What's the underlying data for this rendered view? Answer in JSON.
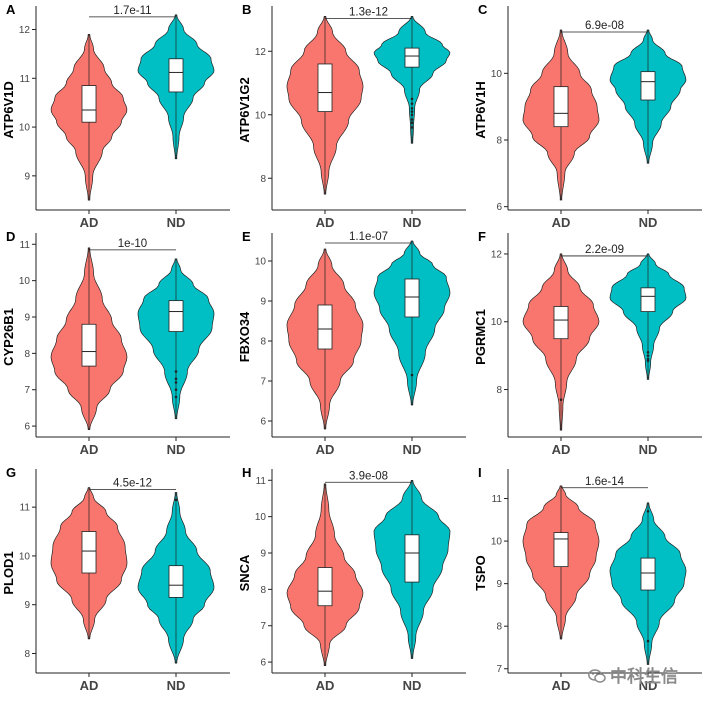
{
  "watermark": {
    "text": "中科生信",
    "icon": "wechat-icon"
  },
  "colors": {
    "AD": "#F8766D",
    "ND": "#00BFC4"
  },
  "chart_data": [
    {
      "type": "violin",
      "panel": "A",
      "ylabel": "ATP6V1D",
      "categories": [
        "AD",
        "ND"
      ],
      "ylim": [
        8.3,
        12.4
      ],
      "yticks": [
        9,
        10,
        11,
        12
      ],
      "pvalue": "1.7e-11",
      "series": [
        {
          "name": "AD",
          "min": 8.5,
          "q1": 10.1,
          "median": 10.35,
          "q3": 10.85,
          "max": 11.9,
          "density": [
            [
              8.5,
              0.02
            ],
            [
              9,
              0.1
            ],
            [
              9.5,
              0.35
            ],
            [
              9.8,
              0.6
            ],
            [
              10.1,
              0.85
            ],
            [
              10.35,
              1.0
            ],
            [
              10.6,
              0.9
            ],
            [
              10.9,
              0.6
            ],
            [
              11.2,
              0.4
            ],
            [
              11.6,
              0.12
            ],
            [
              11.9,
              0.02
            ]
          ],
          "outliers": []
        },
        {
          "name": "ND",
          "min": 9.35,
          "q1": 10.72,
          "median": 11.12,
          "q3": 11.4,
          "max": 12.3,
          "density": [
            [
              9.35,
              0.02
            ],
            [
              9.8,
              0.08
            ],
            [
              10.2,
              0.2
            ],
            [
              10.6,
              0.45
            ],
            [
              10.9,
              0.75
            ],
            [
              11.15,
              1.0
            ],
            [
              11.4,
              0.92
            ],
            [
              11.7,
              0.55
            ],
            [
              12.0,
              0.2
            ],
            [
              12.3,
              0.02
            ]
          ],
          "outliers": []
        }
      ]
    },
    {
      "type": "violin",
      "panel": "B",
      "ylabel": "ATP6V1G2",
      "categories": [
        "AD",
        "ND"
      ],
      "ylim": [
        7.0,
        13.3
      ],
      "yticks": [
        8,
        10,
        12
      ],
      "pvalue": "1.3e-12",
      "series": [
        {
          "name": "AD",
          "min": 7.5,
          "q1": 10.1,
          "median": 10.7,
          "q3": 11.6,
          "max": 13.1,
          "density": [
            [
              7.5,
              0.02
            ],
            [
              8.2,
              0.1
            ],
            [
              9.0,
              0.3
            ],
            [
              9.8,
              0.62
            ],
            [
              10.5,
              0.95
            ],
            [
              10.9,
              1.0
            ],
            [
              11.4,
              0.9
            ],
            [
              12.0,
              0.55
            ],
            [
              12.6,
              0.2
            ],
            [
              13.1,
              0.02
            ]
          ],
          "outliers": []
        },
        {
          "name": "ND",
          "min": 9.1,
          "q1": 11.5,
          "median": 11.85,
          "q3": 12.1,
          "max": 13.1,
          "density": [
            [
              9.1,
              0.02
            ],
            [
              9.6,
              0.04
            ],
            [
              10.2,
              0.07
            ],
            [
              10.8,
              0.2
            ],
            [
              11.3,
              0.55
            ],
            [
              11.7,
              0.9
            ],
            [
              11.95,
              1.0
            ],
            [
              12.2,
              0.8
            ],
            [
              12.6,
              0.35
            ],
            [
              13.1,
              0.02
            ]
          ],
          "outliers": [
            10.5,
            10.35,
            10.2,
            10.1,
            10.0,
            9.85,
            9.75,
            9.6
          ]
        }
      ]
    },
    {
      "type": "violin",
      "panel": "C",
      "ylabel": "ATP6V1H",
      "categories": [
        "AD",
        "ND"
      ],
      "ylim": [
        5.9,
        11.9
      ],
      "yticks": [
        6,
        8,
        10
      ],
      "pvalue": "6.9e-08",
      "series": [
        {
          "name": "AD",
          "min": 6.2,
          "q1": 8.4,
          "median": 8.8,
          "q3": 9.6,
          "max": 11.3,
          "density": [
            [
              6.2,
              0.02
            ],
            [
              7.0,
              0.1
            ],
            [
              7.6,
              0.35
            ],
            [
              8.1,
              0.75
            ],
            [
              8.6,
              1.0
            ],
            [
              9.0,
              0.95
            ],
            [
              9.5,
              0.8
            ],
            [
              10.0,
              0.5
            ],
            [
              10.6,
              0.18
            ],
            [
              11.3,
              0.02
            ]
          ],
          "outliers": []
        },
        {
          "name": "ND",
          "min": 7.3,
          "q1": 9.2,
          "median": 9.75,
          "q3": 10.05,
          "max": 11.3,
          "density": [
            [
              7.3,
              0.02
            ],
            [
              7.9,
              0.12
            ],
            [
              8.5,
              0.35
            ],
            [
              9.0,
              0.6
            ],
            [
              9.5,
              0.85
            ],
            [
              9.8,
              1.0
            ],
            [
              10.2,
              0.9
            ],
            [
              10.6,
              0.45
            ],
            [
              11.0,
              0.12
            ],
            [
              11.3,
              0.02
            ]
          ],
          "outliers": []
        }
      ]
    },
    {
      "type": "violin",
      "panel": "D",
      "ylabel": "CYP26B1",
      "categories": [
        "AD",
        "ND"
      ],
      "ylim": [
        5.7,
        11.2
      ],
      "yticks": [
        6,
        7,
        8,
        9,
        10,
        11
      ],
      "pvalue": "1e-10",
      "series": [
        {
          "name": "AD",
          "min": 5.9,
          "q1": 7.65,
          "median": 8.05,
          "q3": 8.8,
          "max": 10.9,
          "density": [
            [
              5.9,
              0.02
            ],
            [
              6.5,
              0.2
            ],
            [
              7.0,
              0.55
            ],
            [
              7.5,
              0.9
            ],
            [
              7.9,
              1.0
            ],
            [
              8.4,
              0.85
            ],
            [
              8.9,
              0.6
            ],
            [
              9.5,
              0.35
            ],
            [
              10.2,
              0.12
            ],
            [
              10.9,
              0.02
            ]
          ],
          "outliers": []
        },
        {
          "name": "ND",
          "min": 6.2,
          "q1": 8.6,
          "median": 9.15,
          "q3": 9.45,
          "max": 10.6,
          "density": [
            [
              6.2,
              0.02
            ],
            [
              6.8,
              0.1
            ],
            [
              7.5,
              0.3
            ],
            [
              8.1,
              0.6
            ],
            [
              8.7,
              0.95
            ],
            [
              9.1,
              1.0
            ],
            [
              9.5,
              0.85
            ],
            [
              9.9,
              0.45
            ],
            [
              10.3,
              0.12
            ],
            [
              10.6,
              0.02
            ]
          ],
          "outliers": [
            7.5,
            7.3,
            7.2,
            7.0,
            6.8
          ]
        }
      ]
    },
    {
      "type": "violin",
      "panel": "E",
      "ylabel": "FBXO34",
      "categories": [
        "AD",
        "ND"
      ],
      "ylim": [
        5.6,
        10.6
      ],
      "yticks": [
        6,
        7,
        8,
        9,
        10
      ],
      "pvalue": "1.1e-07",
      "series": [
        {
          "name": "AD",
          "min": 5.8,
          "q1": 7.8,
          "median": 8.3,
          "q3": 8.9,
          "max": 10.3,
          "density": [
            [
              5.8,
              0.02
            ],
            [
              6.4,
              0.12
            ],
            [
              7.0,
              0.4
            ],
            [
              7.5,
              0.75
            ],
            [
              8.0,
              0.95
            ],
            [
              8.4,
              1.0
            ],
            [
              8.9,
              0.8
            ],
            [
              9.4,
              0.5
            ],
            [
              9.9,
              0.18
            ],
            [
              10.3,
              0.02
            ]
          ],
          "outliers": []
        },
        {
          "name": "ND",
          "min": 6.4,
          "q1": 8.6,
          "median": 9.1,
          "q3": 9.55,
          "max": 10.5,
          "density": [
            [
              6.4,
              0.02
            ],
            [
              7.0,
              0.12
            ],
            [
              7.7,
              0.35
            ],
            [
              8.3,
              0.6
            ],
            [
              8.8,
              0.85
            ],
            [
              9.2,
              1.0
            ],
            [
              9.6,
              0.9
            ],
            [
              9.9,
              0.55
            ],
            [
              10.2,
              0.2
            ],
            [
              10.5,
              0.02
            ]
          ],
          "outliers": [
            7.15
          ]
        }
      ]
    },
    {
      "type": "violin",
      "panel": "F",
      "ylabel": "PGRMC1",
      "categories": [
        "AD",
        "ND"
      ],
      "ylim": [
        6.6,
        12.5
      ],
      "yticks": [
        8,
        10,
        12
      ],
      "pvalue": "2.2e-09",
      "series": [
        {
          "name": "AD",
          "min": 6.8,
          "q1": 9.5,
          "median": 10.05,
          "q3": 10.45,
          "max": 12.0,
          "density": [
            [
              6.8,
              0.02
            ],
            [
              7.5,
              0.05
            ],
            [
              8.2,
              0.15
            ],
            [
              8.9,
              0.4
            ],
            [
              9.5,
              0.75
            ],
            [
              10.0,
              1.0
            ],
            [
              10.5,
              0.85
            ],
            [
              11.0,
              0.5
            ],
            [
              11.5,
              0.18
            ],
            [
              12.0,
              0.02
            ]
          ],
          "outliers": [
            7.7
          ]
        },
        {
          "name": "ND",
          "min": 8.3,
          "q1": 10.3,
          "median": 10.75,
          "q3": 11.0,
          "max": 12.0,
          "density": [
            [
              8.3,
              0.02
            ],
            [
              8.8,
              0.07
            ],
            [
              9.3,
              0.15
            ],
            [
              9.8,
              0.3
            ],
            [
              10.3,
              0.65
            ],
            [
              10.7,
              1.0
            ],
            [
              11.0,
              0.95
            ],
            [
              11.4,
              0.55
            ],
            [
              11.7,
              0.2
            ],
            [
              12.0,
              0.02
            ]
          ],
          "outliers": [
            9.1,
            9.0,
            8.9,
            8.85
          ]
        }
      ]
    },
    {
      "type": "violin",
      "panel": "G",
      "ylabel": "PLOD1",
      "categories": [
        "AD",
        "ND"
      ],
      "ylim": [
        7.6,
        11.7
      ],
      "yticks": [
        8,
        9,
        10,
        11
      ],
      "pvalue": "4.5e-12",
      "series": [
        {
          "name": "AD",
          "min": 8.3,
          "q1": 9.65,
          "median": 10.1,
          "q3": 10.5,
          "max": 11.4,
          "density": [
            [
              8.3,
              0.02
            ],
            [
              8.7,
              0.15
            ],
            [
              9.1,
              0.45
            ],
            [
              9.5,
              0.85
            ],
            [
              9.85,
              1.0
            ],
            [
              10.2,
              0.95
            ],
            [
              10.6,
              0.75
            ],
            [
              10.9,
              0.45
            ],
            [
              11.2,
              0.12
            ],
            [
              11.4,
              0.02
            ]
          ],
          "outliers": []
        },
        {
          "name": "ND",
          "min": 7.8,
          "q1": 9.15,
          "median": 9.4,
          "q3": 9.8,
          "max": 11.3,
          "density": [
            [
              7.8,
              0.02
            ],
            [
              8.3,
              0.2
            ],
            [
              8.7,
              0.45
            ],
            [
              9.0,
              0.75
            ],
            [
              9.35,
              1.0
            ],
            [
              9.7,
              0.9
            ],
            [
              10.1,
              0.55
            ],
            [
              10.5,
              0.25
            ],
            [
              10.9,
              0.1
            ],
            [
              11.3,
              0.02
            ]
          ],
          "outliers": [
            11.15
          ]
        }
      ]
    },
    {
      "type": "violin",
      "panel": "H",
      "ylabel": "SNCA",
      "categories": [
        "AD",
        "ND"
      ],
      "ylim": [
        5.7,
        11.2
      ],
      "yticks": [
        6,
        7,
        8,
        9,
        10,
        11
      ],
      "pvalue": "3.9e-08",
      "series": [
        {
          "name": "AD",
          "min": 5.9,
          "q1": 7.55,
          "median": 7.95,
          "q3": 8.6,
          "max": 10.9,
          "density": [
            [
              5.9,
              0.02
            ],
            [
              6.5,
              0.12
            ],
            [
              7.0,
              0.55
            ],
            [
              7.5,
              0.9
            ],
            [
              7.9,
              1.0
            ],
            [
              8.4,
              0.8
            ],
            [
              8.9,
              0.5
            ],
            [
              9.5,
              0.25
            ],
            [
              10.2,
              0.1
            ],
            [
              10.9,
              0.02
            ]
          ],
          "outliers": []
        },
        {
          "name": "ND",
          "min": 6.1,
          "q1": 8.2,
          "median": 9.0,
          "q3": 9.5,
          "max": 11.0,
          "density": [
            [
              6.1,
              0.02
            ],
            [
              6.7,
              0.1
            ],
            [
              7.4,
              0.3
            ],
            [
              8.0,
              0.55
            ],
            [
              8.6,
              0.8
            ],
            [
              9.1,
              0.95
            ],
            [
              9.6,
              1.0
            ],
            [
              10.0,
              0.7
            ],
            [
              10.5,
              0.25
            ],
            [
              11.0,
              0.02
            ]
          ],
          "outliers": []
        }
      ]
    },
    {
      "type": "violin",
      "panel": "I",
      "ylabel": "TSPO",
      "categories": [
        "AD",
        "ND"
      ],
      "ylim": [
        6.9,
        11.6
      ],
      "yticks": [
        7,
        8,
        9,
        10,
        11
      ],
      "pvalue": "1.6e-14",
      "series": [
        {
          "name": "AD",
          "min": 7.7,
          "q1": 9.4,
          "median": 10.05,
          "q3": 10.2,
          "max": 11.3,
          "density": [
            [
              7.7,
              0.02
            ],
            [
              8.2,
              0.12
            ],
            [
              8.7,
              0.4
            ],
            [
              9.2,
              0.75
            ],
            [
              9.6,
              0.92
            ],
            [
              10.0,
              1.0
            ],
            [
              10.4,
              0.9
            ],
            [
              10.8,
              0.45
            ],
            [
              11.1,
              0.12
            ],
            [
              11.3,
              0.02
            ]
          ],
          "outliers": []
        },
        {
          "name": "ND",
          "min": 7.1,
          "q1": 8.85,
          "median": 9.25,
          "q3": 9.6,
          "max": 10.9,
          "density": [
            [
              7.1,
              0.02
            ],
            [
              7.6,
              0.1
            ],
            [
              8.1,
              0.3
            ],
            [
              8.6,
              0.7
            ],
            [
              9.0,
              0.95
            ],
            [
              9.3,
              1.0
            ],
            [
              9.7,
              0.85
            ],
            [
              10.1,
              0.45
            ],
            [
              10.5,
              0.15
            ],
            [
              10.9,
              0.02
            ]
          ],
          "outliers": [
            10.7,
            7.65
          ]
        }
      ]
    }
  ]
}
